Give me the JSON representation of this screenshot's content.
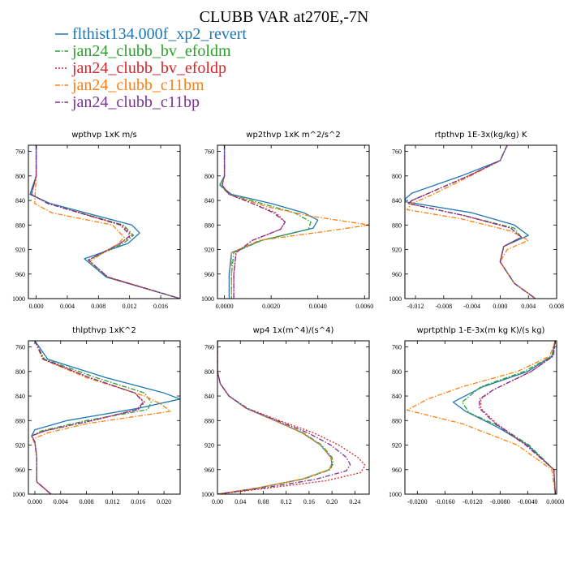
{
  "figure_title": "CLUBB VAR at270E,-7N",
  "legend": [
    {
      "label": "flthist134.000f_xp2_revert",
      "color": "#1f77b4",
      "dash": "solid"
    },
    {
      "label": "jan24_clubb_bv_efoldm",
      "color": "#2ca02c",
      "dash": "dashdot"
    },
    {
      "label": "jan24_clubb_bv_efoldp",
      "color": "#d62728",
      "dash": "dot"
    },
    {
      "label": "jan24_clubb_c11bm",
      "color": "#ff7f0e",
      "dash": "dashdot"
    },
    {
      "label": "jan24_clubb_c11bp",
      "color": "#7b3294",
      "dash": "dashdot"
    }
  ],
  "chart_data": [
    {
      "type": "line",
      "title": "wpthvp  1xK m/s",
      "xlim": [
        -0.001,
        0.0185
      ],
      "xticks": [
        0.0,
        0.004,
        0.008,
        0.012,
        0.016
      ],
      "xtick_labels": [
        "0.000",
        "0.004",
        "0.008",
        "0.012",
        "0.016"
      ],
      "ylim": [
        1000,
        750
      ],
      "yticks": [
        760,
        800,
        840,
        880,
        920,
        960,
        1000
      ],
      "series": [
        {
          "y": [
            750,
            800,
            830,
            845,
            880,
            893,
            910,
            935,
            965,
            1000
          ],
          "values": [
            0.0,
            0.0,
            -0.0008,
            0.0018,
            0.0123,
            0.0133,
            0.0118,
            0.0062,
            0.009,
            0.0185
          ]
        },
        {
          "y": [
            750,
            800,
            830,
            845,
            880,
            897,
            910,
            937,
            965,
            1000
          ],
          "values": [
            0.0,
            0.0,
            -0.0006,
            0.0015,
            0.0112,
            0.0125,
            0.0112,
            0.0067,
            0.0092,
            0.0185
          ]
        },
        {
          "y": [
            750,
            800,
            830,
            845,
            880,
            897,
            910,
            937,
            965,
            1000
          ],
          "values": [
            0.0,
            0.0,
            -0.0006,
            0.0015,
            0.011,
            0.0123,
            0.0108,
            0.0067,
            0.0092,
            0.0185
          ]
        },
        {
          "y": [
            750,
            800,
            845,
            860,
            880,
            900,
            910,
            940,
            965,
            1000
          ],
          "values": [
            0.0,
            0.0,
            -0.0002,
            0.002,
            0.0098,
            0.0113,
            0.0106,
            0.0068,
            0.0093,
            0.0185
          ]
        },
        {
          "y": [
            750,
            800,
            830,
            845,
            880,
            897,
            910,
            937,
            965,
            1000
          ],
          "values": [
            0.0,
            0.0,
            -0.0006,
            0.0015,
            0.0108,
            0.0121,
            0.0108,
            0.0067,
            0.0092,
            0.0185
          ]
        }
      ]
    },
    {
      "type": "line",
      "title": "wp2thvp  1xK m^2/s^2",
      "xlim": [
        -0.0003,
        0.0062
      ],
      "xticks": [
        0.0,
        0.002,
        0.004,
        0.006
      ],
      "xtick_labels": [
        "0.0000",
        "0.0020",
        "0.0040",
        "0.0060"
      ],
      "ylim": [
        1000,
        750
      ],
      "yticks": [
        760,
        800,
        840,
        880,
        920,
        960,
        1000
      ],
      "series": [
        {
          "y": [
            750,
            800,
            815,
            830,
            845,
            860,
            872,
            885,
            905,
            925,
            960,
            1000
          ],
          "values": [
            0.0,
            0.0,
            -0.0002,
            0.0003,
            0.002,
            0.0034,
            0.004,
            0.0038,
            0.0016,
            0.0003,
            0.0002,
            0.0002
          ]
        },
        {
          "y": [
            750,
            800,
            815,
            830,
            845,
            860,
            875,
            887,
            905,
            925,
            960,
            1000
          ],
          "values": [
            0.0,
            0.0,
            -0.0002,
            0.0002,
            0.0016,
            0.003,
            0.0037,
            0.0036,
            0.0016,
            0.0004,
            0.0003,
            0.0003
          ]
        },
        {
          "y": [
            750,
            800,
            815,
            830,
            845,
            860,
            875,
            887,
            905,
            925,
            960,
            1000
          ],
          "values": [
            0.0,
            0.0,
            -0.0001,
            0.0002,
            0.0012,
            0.0022,
            0.0026,
            0.0024,
            0.0012,
            0.0005,
            0.0004,
            0.0004
          ]
        },
        {
          "y": [
            750,
            800,
            815,
            830,
            850,
            865,
            880,
            890,
            905,
            925,
            960,
            1000
          ],
          "values": [
            0.0,
            0.0,
            -0.0001,
            0.0002,
            0.0018,
            0.0036,
            0.0062,
            0.0044,
            0.0015,
            0.0003,
            0.0003,
            0.0003
          ]
        },
        {
          "y": [
            750,
            800,
            815,
            830,
            845,
            860,
            875,
            887,
            905,
            925,
            960,
            1000
          ],
          "values": [
            0.0,
            0.0,
            -0.0001,
            0.0002,
            0.0012,
            0.0021,
            0.0026,
            0.0024,
            0.0012,
            0.0005,
            0.0004,
            0.0004
          ]
        }
      ]
    },
    {
      "type": "line",
      "title": "rtpthvp  1E-3x(kg/kg) K",
      "xlim": [
        -0.0135,
        0.008
      ],
      "xticks": [
        -0.012,
        -0.008,
        -0.004,
        0.0,
        0.004,
        0.008
      ],
      "xtick_labels": [
        "-0.012",
        "-0.008",
        "-0.004",
        "0.000",
        "0.004",
        "0.008"
      ],
      "ylim": [
        1000,
        750
      ],
      "yticks": [
        760,
        800,
        840,
        880,
        920,
        960,
        1000
      ],
      "series": [
        {
          "y": [
            750,
            775,
            800,
            828,
            838,
            842,
            860,
            880,
            897,
            915,
            940,
            975,
            1000
          ],
          "values": [
            0.001,
            0.0,
            -0.0055,
            -0.0125,
            -0.0135,
            -0.0135,
            -0.004,
            0.002,
            0.004,
            0.0005,
            0.0,
            0.002,
            0.005
          ]
        },
        {
          "y": [
            750,
            775,
            800,
            830,
            840,
            845,
            865,
            885,
            900,
            915,
            940,
            975,
            1000
          ],
          "values": [
            0.001,
            0.0,
            -0.0045,
            -0.0105,
            -0.0125,
            -0.013,
            -0.005,
            0.002,
            0.003,
            0.0005,
            0.0,
            0.002,
            0.005
          ]
        },
        {
          "y": [
            750,
            775,
            800,
            830,
            840,
            845,
            865,
            885,
            900,
            915,
            940,
            975,
            1000
          ],
          "values": [
            0.001,
            0.0,
            -0.0045,
            -0.0105,
            -0.0125,
            -0.013,
            -0.005,
            0.0015,
            0.003,
            0.0005,
            0.0,
            0.002,
            0.005
          ]
        },
        {
          "y": [
            750,
            775,
            800,
            830,
            845,
            855,
            870,
            890,
            905,
            920,
            940,
            975,
            1000
          ],
          "values": [
            0.001,
            0.0,
            -0.0042,
            -0.0095,
            -0.0125,
            -0.0132,
            -0.0055,
            0.0015,
            0.004,
            0.001,
            0.0,
            0.002,
            0.005
          ]
        },
        {
          "y": [
            750,
            775,
            800,
            830,
            840,
            845,
            865,
            885,
            900,
            915,
            940,
            975,
            1000
          ],
          "values": [
            0.001,
            0.0,
            -0.0045,
            -0.0105,
            -0.0125,
            -0.013,
            -0.005,
            0.0015,
            0.003,
            0.0005,
            0.0,
            0.002,
            0.005
          ]
        }
      ]
    },
    {
      "type": "line",
      "title": "thlpthvp  1xK^2",
      "xlim": [
        -0.001,
        0.0225
      ],
      "xticks": [
        0.0,
        0.004,
        0.008,
        0.012,
        0.016,
        0.02
      ],
      "xtick_labels": [
        "0.000",
        "0.004",
        "0.008",
        "0.012",
        "0.016",
        "0.020"
      ],
      "ylim": [
        1000,
        750
      ],
      "yticks": [
        760,
        800,
        840,
        880,
        920,
        960,
        1000
      ],
      "series": [
        {
          "y": [
            750,
            780,
            810,
            835,
            845,
            860,
            880,
            895,
            905,
            915,
            940,
            980,
            1000
          ],
          "values": [
            0.0,
            0.002,
            0.011,
            0.02,
            0.0225,
            0.016,
            0.005,
            0.0,
            -0.0005,
            0.0,
            0.0003,
            0.0003,
            0.0025
          ]
        },
        {
          "y": [
            750,
            780,
            810,
            835,
            850,
            862,
            880,
            897,
            905,
            915,
            940,
            980,
            1000
          ],
          "values": [
            0.0,
            0.0015,
            0.0095,
            0.017,
            0.018,
            0.0175,
            0.008,
            0.001,
            -0.0005,
            0.0,
            0.0003,
            0.0003,
            0.0025
          ]
        },
        {
          "y": [
            750,
            780,
            810,
            835,
            850,
            862,
            880,
            897,
            905,
            915,
            940,
            980,
            1000
          ],
          "values": [
            0.0,
            0.0013,
            0.0085,
            0.0155,
            0.017,
            0.016,
            0.009,
            0.0015,
            -0.0005,
            0.0,
            0.0003,
            0.0003,
            0.0025
          ]
        },
        {
          "y": [
            750,
            780,
            810,
            840,
            853,
            865,
            885,
            900,
            910,
            920,
            940,
            980,
            1000
          ],
          "values": [
            0.0,
            0.0012,
            0.008,
            0.017,
            0.0195,
            0.021,
            0.008,
            0.002,
            -0.0003,
            0.0,
            0.0003,
            0.0003,
            0.0025
          ]
        },
        {
          "y": [
            750,
            780,
            810,
            835,
            850,
            862,
            880,
            897,
            905,
            915,
            940,
            980,
            1000
          ],
          "values": [
            0.0,
            0.0013,
            0.0085,
            0.0155,
            0.0168,
            0.0158,
            0.0088,
            0.0015,
            -0.0005,
            0.0,
            0.0003,
            0.0003,
            0.0025
          ]
        }
      ]
    },
    {
      "type": "line",
      "title": "wp4  1x(m^4)/(s^4)",
      "xlim": [
        0.0,
        0.265
      ],
      "xticks": [
        0.0,
        0.04,
        0.08,
        0.12,
        0.16,
        0.2,
        0.24
      ],
      "xtick_labels": [
        "0.00",
        "0.04",
        "0.08",
        "0.12",
        "0.16",
        "0.20",
        "0.24"
      ],
      "ylim": [
        1000,
        750
      ],
      "yticks": [
        760,
        800,
        840,
        880,
        920,
        960,
        1000
      ],
      "series": [
        {
          "y": [
            750,
            800,
            820,
            840,
            860,
            880,
            900,
            920,
            940,
            950,
            960,
            975,
            990,
            1000
          ],
          "values": [
            0.0,
            0.0,
            0.005,
            0.02,
            0.05,
            0.1,
            0.148,
            0.18,
            0.198,
            0.2,
            0.195,
            0.15,
            0.07,
            0.0
          ]
        },
        {
          "y": [
            750,
            800,
            820,
            840,
            860,
            880,
            900,
            920,
            940,
            950,
            960,
            975,
            990,
            1000
          ],
          "values": [
            0.0,
            0.0,
            0.005,
            0.02,
            0.05,
            0.1,
            0.15,
            0.182,
            0.2,
            0.202,
            0.197,
            0.152,
            0.07,
            0.0
          ]
        },
        {
          "y": [
            750,
            800,
            820,
            840,
            860,
            880,
            900,
            920,
            940,
            953,
            965,
            978,
            990,
            1000
          ],
          "values": [
            0.0,
            0.0,
            0.005,
            0.02,
            0.052,
            0.108,
            0.168,
            0.212,
            0.245,
            0.258,
            0.25,
            0.19,
            0.09,
            0.0
          ]
        },
        {
          "y": [
            750,
            800,
            820,
            840,
            860,
            880,
            900,
            920,
            940,
            950,
            960,
            975,
            990,
            1000
          ],
          "values": [
            0.0,
            0.0,
            0.005,
            0.02,
            0.05,
            0.1,
            0.148,
            0.18,
            0.198,
            0.2,
            0.195,
            0.15,
            0.07,
            0.0
          ]
        },
        {
          "y": [
            750,
            800,
            820,
            840,
            860,
            880,
            900,
            920,
            940,
            952,
            962,
            976,
            990,
            1000
          ],
          "values": [
            0.0,
            0.0,
            0.005,
            0.02,
            0.052,
            0.104,
            0.158,
            0.198,
            0.225,
            0.232,
            0.225,
            0.17,
            0.08,
            0.0
          ]
        }
      ]
    },
    {
      "type": "line",
      "title": "wprtpthlp  1-E-3x(m kg K)/(s kg)",
      "xlim": [
        -0.0218,
        0.0002
      ],
      "xticks": [
        -0.02,
        -0.016,
        -0.012,
        -0.008,
        -0.004,
        0.0
      ],
      "xtick_labels": [
        "-0.0200",
        "-0.0160",
        "-0.0120",
        "-0.0080",
        "-0.0040",
        "0.0000"
      ],
      "ylim": [
        1000,
        750
      ],
      "yticks": [
        760,
        800,
        840,
        880,
        920,
        960,
        1000
      ],
      "series": [
        {
          "y": [
            750,
            775,
            800,
            825,
            850,
            865,
            890,
            920,
            960,
            1000
          ],
          "values": [
            0.0,
            -0.0005,
            -0.004,
            -0.0105,
            -0.0148,
            -0.013,
            -0.0085,
            -0.004,
            -0.0002,
            0.0
          ]
        },
        {
          "y": [
            750,
            775,
            800,
            825,
            850,
            867,
            890,
            920,
            960,
            1000
          ],
          "values": [
            0.0,
            -0.0005,
            -0.0045,
            -0.0108,
            -0.0135,
            -0.0125,
            -0.008,
            -0.0038,
            -0.0002,
            0.0
          ]
        },
        {
          "y": [
            750,
            775,
            800,
            830,
            845,
            860,
            885,
            920,
            960,
            1000
          ],
          "values": [
            0.0,
            -0.0003,
            -0.0035,
            -0.009,
            -0.0108,
            -0.0108,
            -0.0085,
            -0.0042,
            -0.0002,
            0.0
          ]
        },
        {
          "y": [
            750,
            775,
            800,
            825,
            845,
            863,
            885,
            920,
            960,
            1000
          ],
          "values": [
            0.0,
            -0.0008,
            -0.0055,
            -0.0135,
            -0.0185,
            -0.0215,
            -0.0135,
            -0.0055,
            -0.0005,
            0.0
          ]
        },
        {
          "y": [
            750,
            775,
            800,
            830,
            845,
            860,
            885,
            920,
            960,
            1000
          ],
          "values": [
            0.0,
            -0.0003,
            -0.0035,
            -0.009,
            -0.011,
            -0.011,
            -0.0087,
            -0.0043,
            -0.0002,
            0.0
          ]
        }
      ]
    }
  ]
}
